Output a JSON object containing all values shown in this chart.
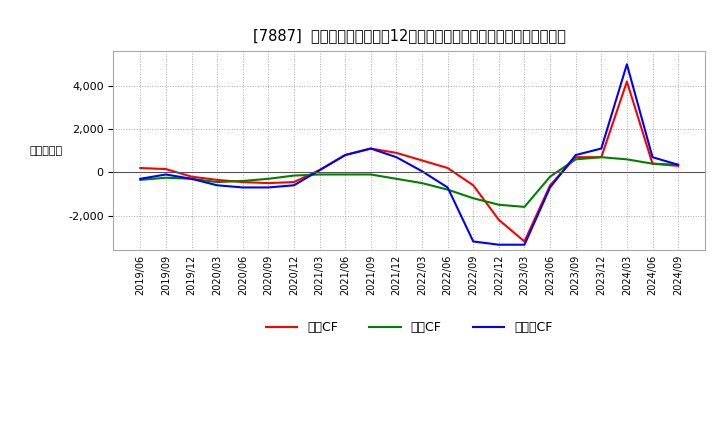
{
  "title": "[7887]  キャッシュフローの12か月移動合計の対前年同期増減額の推移",
  "ylabel": "（百万円）",
  "background_color": "#ffffff",
  "plot_bg_color": "#ffffff",
  "grid_color": "#aaaaaa",
  "ylim": [
    -3600,
    5600
  ],
  "yticks": [
    -2000,
    0,
    2000,
    4000
  ],
  "dates": [
    "2019/06",
    "2019/09",
    "2019/12",
    "2020/03",
    "2020/06",
    "2020/09",
    "2020/12",
    "2021/03",
    "2021/06",
    "2021/09",
    "2021/12",
    "2022/03",
    "2022/06",
    "2022/09",
    "2022/12",
    "2023/03",
    "2023/06",
    "2023/09",
    "2023/12",
    "2024/03",
    "2024/06",
    "2024/09"
  ],
  "eigyo_cf": [
    200,
    150,
    -200,
    -350,
    -450,
    -500,
    -450,
    100,
    800,
    1100,
    900,
    550,
    200,
    -600,
    -2200,
    -3200,
    -600,
    700,
    700,
    4200,
    400,
    300
  ],
  "toshi_cf": [
    -350,
    -250,
    -300,
    -450,
    -400,
    -300,
    -150,
    -100,
    -100,
    -100,
    -300,
    -500,
    -800,
    -1200,
    -1500,
    -1600,
    -200,
    600,
    700,
    600,
    400,
    350
  ],
  "free_cf": [
    -300,
    -100,
    -300,
    -600,
    -700,
    -700,
    -600,
    100,
    800,
    1100,
    700,
    50,
    -700,
    -3200,
    -3350,
    -3350,
    -700,
    800,
    1100,
    5000,
    700,
    350
  ],
  "eigyo_color": "#ff0000",
  "toshi_color": "#008000",
  "free_color": "#0000ff",
  "legend_labels": [
    "営業CF",
    "投資CF",
    "フリーCF"
  ]
}
